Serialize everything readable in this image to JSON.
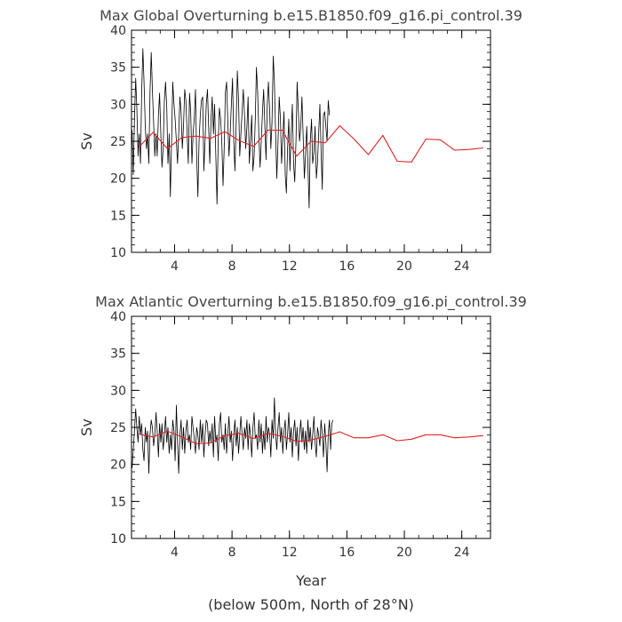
{
  "figure": {
    "xlabel": "Year",
    "footnote": "(below 500m, North of 28°N)"
  },
  "chart_data": [
    {
      "type": "line",
      "title": "Max Global Overturning b.e15.B1850.f09_g16.pi_control.39",
      "ylabel": "Sv",
      "xlabel": "",
      "xlim": [
        1,
        26
      ],
      "ylim": [
        10,
        40
      ],
      "xticks": [
        4,
        8,
        12,
        16,
        20,
        24
      ],
      "yticks": [
        10,
        15,
        20,
        25,
        30,
        35,
        40
      ],
      "grid": false,
      "series": [
        {
          "color": "#000000",
          "x_step": 0.0833,
          "x_start": 1.04,
          "values": [
            26.5,
            20.5,
            28,
            33.5,
            29.5,
            23,
            26,
            22,
            31.5,
            37.5,
            33,
            27,
            24,
            26,
            22,
            31.5,
            37,
            32,
            27.5,
            23,
            26,
            23,
            28.5,
            31.5,
            26,
            21.5,
            24,
            30.5,
            33,
            29.5,
            22,
            26,
            17.5,
            25,
            33,
            30,
            28,
            25,
            22,
            26,
            31,
            29,
            24,
            27,
            32,
            30.5,
            26,
            22,
            31.5,
            29,
            22,
            26,
            28,
            32,
            23,
            17.5,
            25,
            28.5,
            30.5,
            31,
            21,
            25,
            30,
            32,
            27,
            22,
            28,
            31,
            26,
            30,
            23,
            16.5,
            25,
            29.5,
            28,
            25,
            19,
            24,
            31.5,
            33,
            28,
            23,
            26,
            30,
            33.5,
            25,
            21,
            27.5,
            34.5,
            30.5,
            23,
            26,
            29,
            32,
            28.5,
            24,
            27,
            31,
            22,
            25,
            28.5,
            21,
            23,
            28,
            35,
            31.5,
            26,
            21.5,
            25,
            29,
            32,
            27,
            22.5,
            30,
            33,
            29,
            24,
            27.5,
            36.5,
            33,
            26,
            20,
            25,
            31,
            28,
            22,
            25.5,
            29,
            20.5,
            18,
            24,
            28,
            21,
            26,
            30,
            22,
            19.5,
            25,
            33,
            29,
            25,
            27,
            31,
            26,
            20,
            23,
            27,
            22,
            16,
            25,
            28,
            22,
            23.5,
            27,
            20,
            22,
            26,
            30,
            24,
            18.5,
            28.5,
            29,
            27,
            25,
            30.5,
            28.5
          ]
        },
        {
          "color": "#dd2222",
          "x": [
            1.5,
            2.5,
            3.5,
            4.5,
            5.5,
            6.5,
            7.5,
            8.5,
            9.5,
            10.5,
            11.5,
            12.5,
            13.5,
            14.5,
            15.5,
            16.5,
            17.5,
            18.5,
            19.5,
            20.5,
            21.5,
            22.5,
            23.5,
            24.5,
            25.5
          ],
          "values": [
            24.2,
            26.2,
            24,
            25.5,
            25.7,
            25.4,
            26.3,
            25.1,
            24.3,
            26.5,
            26.5,
            23,
            25,
            24.8,
            27.1,
            25.3,
            23.2,
            25.8,
            22.3,
            22.2,
            25.3,
            25.2,
            23.8,
            23.9,
            24.1
          ]
        }
      ]
    },
    {
      "type": "line",
      "title": "Max Atlantic Overturning b.e15.B1850.f09_g16.pi_control.39",
      "ylabel": "Sv",
      "xlabel": "Year",
      "xlim": [
        1,
        26
      ],
      "ylim": [
        10,
        40
      ],
      "xticks": [
        4,
        8,
        12,
        16,
        20,
        24
      ],
      "yticks": [
        10,
        15,
        20,
        25,
        30,
        35,
        40
      ],
      "grid": false,
      "series": [
        {
          "color": "#000000",
          "x_step": 0.0833,
          "x_start": 1.04,
          "values": [
            19.5,
            22,
            24.5,
            27.5,
            25,
            23,
            26.5,
            24,
            25.5,
            22,
            20.5,
            25,
            23,
            24.5,
            18.8,
            24,
            26,
            25,
            22.5,
            24,
            27,
            24.5,
            21,
            25.5,
            23,
            25.5,
            22,
            24,
            26.5,
            23,
            25,
            21.5,
            24,
            22,
            26,
            24.5,
            20.5,
            28,
            23,
            18.8,
            24,
            26,
            22,
            25,
            21.5,
            24.5,
            26,
            23,
            24,
            22,
            26.5,
            25,
            23.5,
            21.5,
            25,
            24,
            22,
            26,
            23,
            25.5,
            21,
            24,
            26,
            25.5,
            22.5,
            24.5,
            23,
            25.5,
            21,
            26.5,
            23,
            24,
            20.5,
            25.5,
            27,
            23,
            24,
            22,
            25.5,
            21.5,
            24,
            26.5,
            23,
            24.5,
            20.5,
            24,
            26,
            22.5,
            25,
            21.5,
            24,
            26.5,
            24,
            22,
            25,
            23.5,
            26,
            22,
            25.5,
            24,
            21,
            25,
            27,
            23.5,
            24,
            22,
            26,
            23,
            25.5,
            21.5,
            24.5,
            22,
            26.5,
            23,
            25,
            24,
            21,
            26,
            23.5,
            29,
            24,
            22,
            25,
            27,
            23,
            25,
            21.5,
            24.5,
            26,
            22,
            24,
            27,
            23,
            25,
            21,
            24.5,
            26,
            22.5,
            25,
            20.5,
            24,
            26,
            23,
            25,
            22,
            24.5,
            21.5,
            26,
            23,
            25,
            22,
            24,
            26.5,
            23,
            21,
            25,
            24,
            22.5,
            26,
            24,
            21,
            25.5,
            23,
            19,
            24,
            26,
            22,
            25.5,
            26
          ]
        },
        {
          "color": "#dd2222",
          "x": [
            1.5,
            2.5,
            3.5,
            4.5,
            5.5,
            6.5,
            7.5,
            8.5,
            9.5,
            10.5,
            11.5,
            12.5,
            13.5,
            14.5,
            15.5,
            16.5,
            17.5,
            18.5,
            19.5,
            20.5,
            21.5,
            22.5,
            23.5,
            24.5,
            25.5
          ],
          "values": [
            24.1,
            23.7,
            24.5,
            23.7,
            22.8,
            22.9,
            23.9,
            24.2,
            23.5,
            24.2,
            23.8,
            23.1,
            23.3,
            23.8,
            24.4,
            23.6,
            23.6,
            24,
            23.2,
            23.4,
            24,
            24,
            23.6,
            23.7,
            23.9
          ]
        }
      ]
    }
  ]
}
